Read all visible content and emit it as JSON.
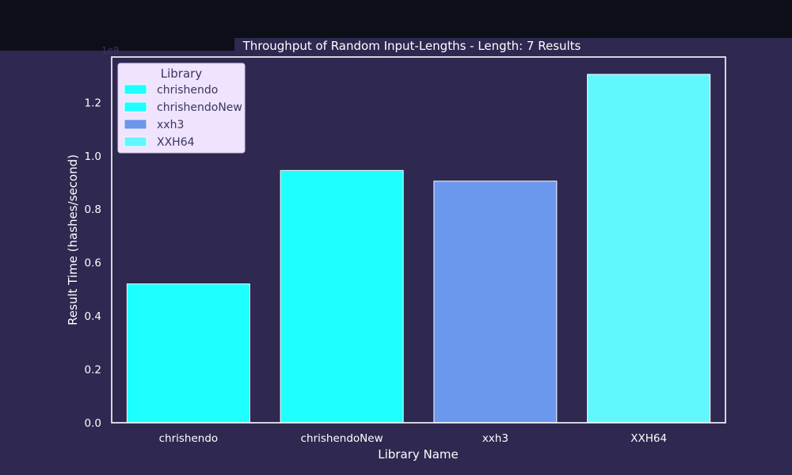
{
  "chart_data": {
    "type": "bar",
    "title": "Throughput of Random Input-Lengths - Length: 7 Results",
    "xlabel": "Library Name",
    "ylabel": "Result Time (hashes/second)",
    "y_offset_label": "1e8",
    "categories": [
      "chrishendo",
      "chrishendoNew",
      "xxh3",
      "XXH64"
    ],
    "values": [
      0.52,
      0.945,
      0.905,
      1.305
    ],
    "colors": [
      "#1effff",
      "#1effff",
      "#6b97ec",
      "#62f7fd"
    ],
    "ylim": [
      0,
      1.37
    ],
    "yticks": [
      "0.0",
      "0.2",
      "0.4",
      "0.6",
      "0.8",
      "1.0",
      "1.2"
    ],
    "ytick_values": [
      0,
      0.2,
      0.4,
      0.6,
      0.8,
      1.0,
      1.2
    ],
    "grid": false,
    "legend": {
      "title": "Library",
      "placement": "top-left",
      "entries": [
        {
          "label": "chrishendo",
          "color": "#1effff"
        },
        {
          "label": "chrishendoNew",
          "color": "#1effff"
        },
        {
          "label": "xxh3",
          "color": "#6b97ec"
        },
        {
          "label": "XXH64",
          "color": "#62f7fd"
        }
      ]
    }
  }
}
